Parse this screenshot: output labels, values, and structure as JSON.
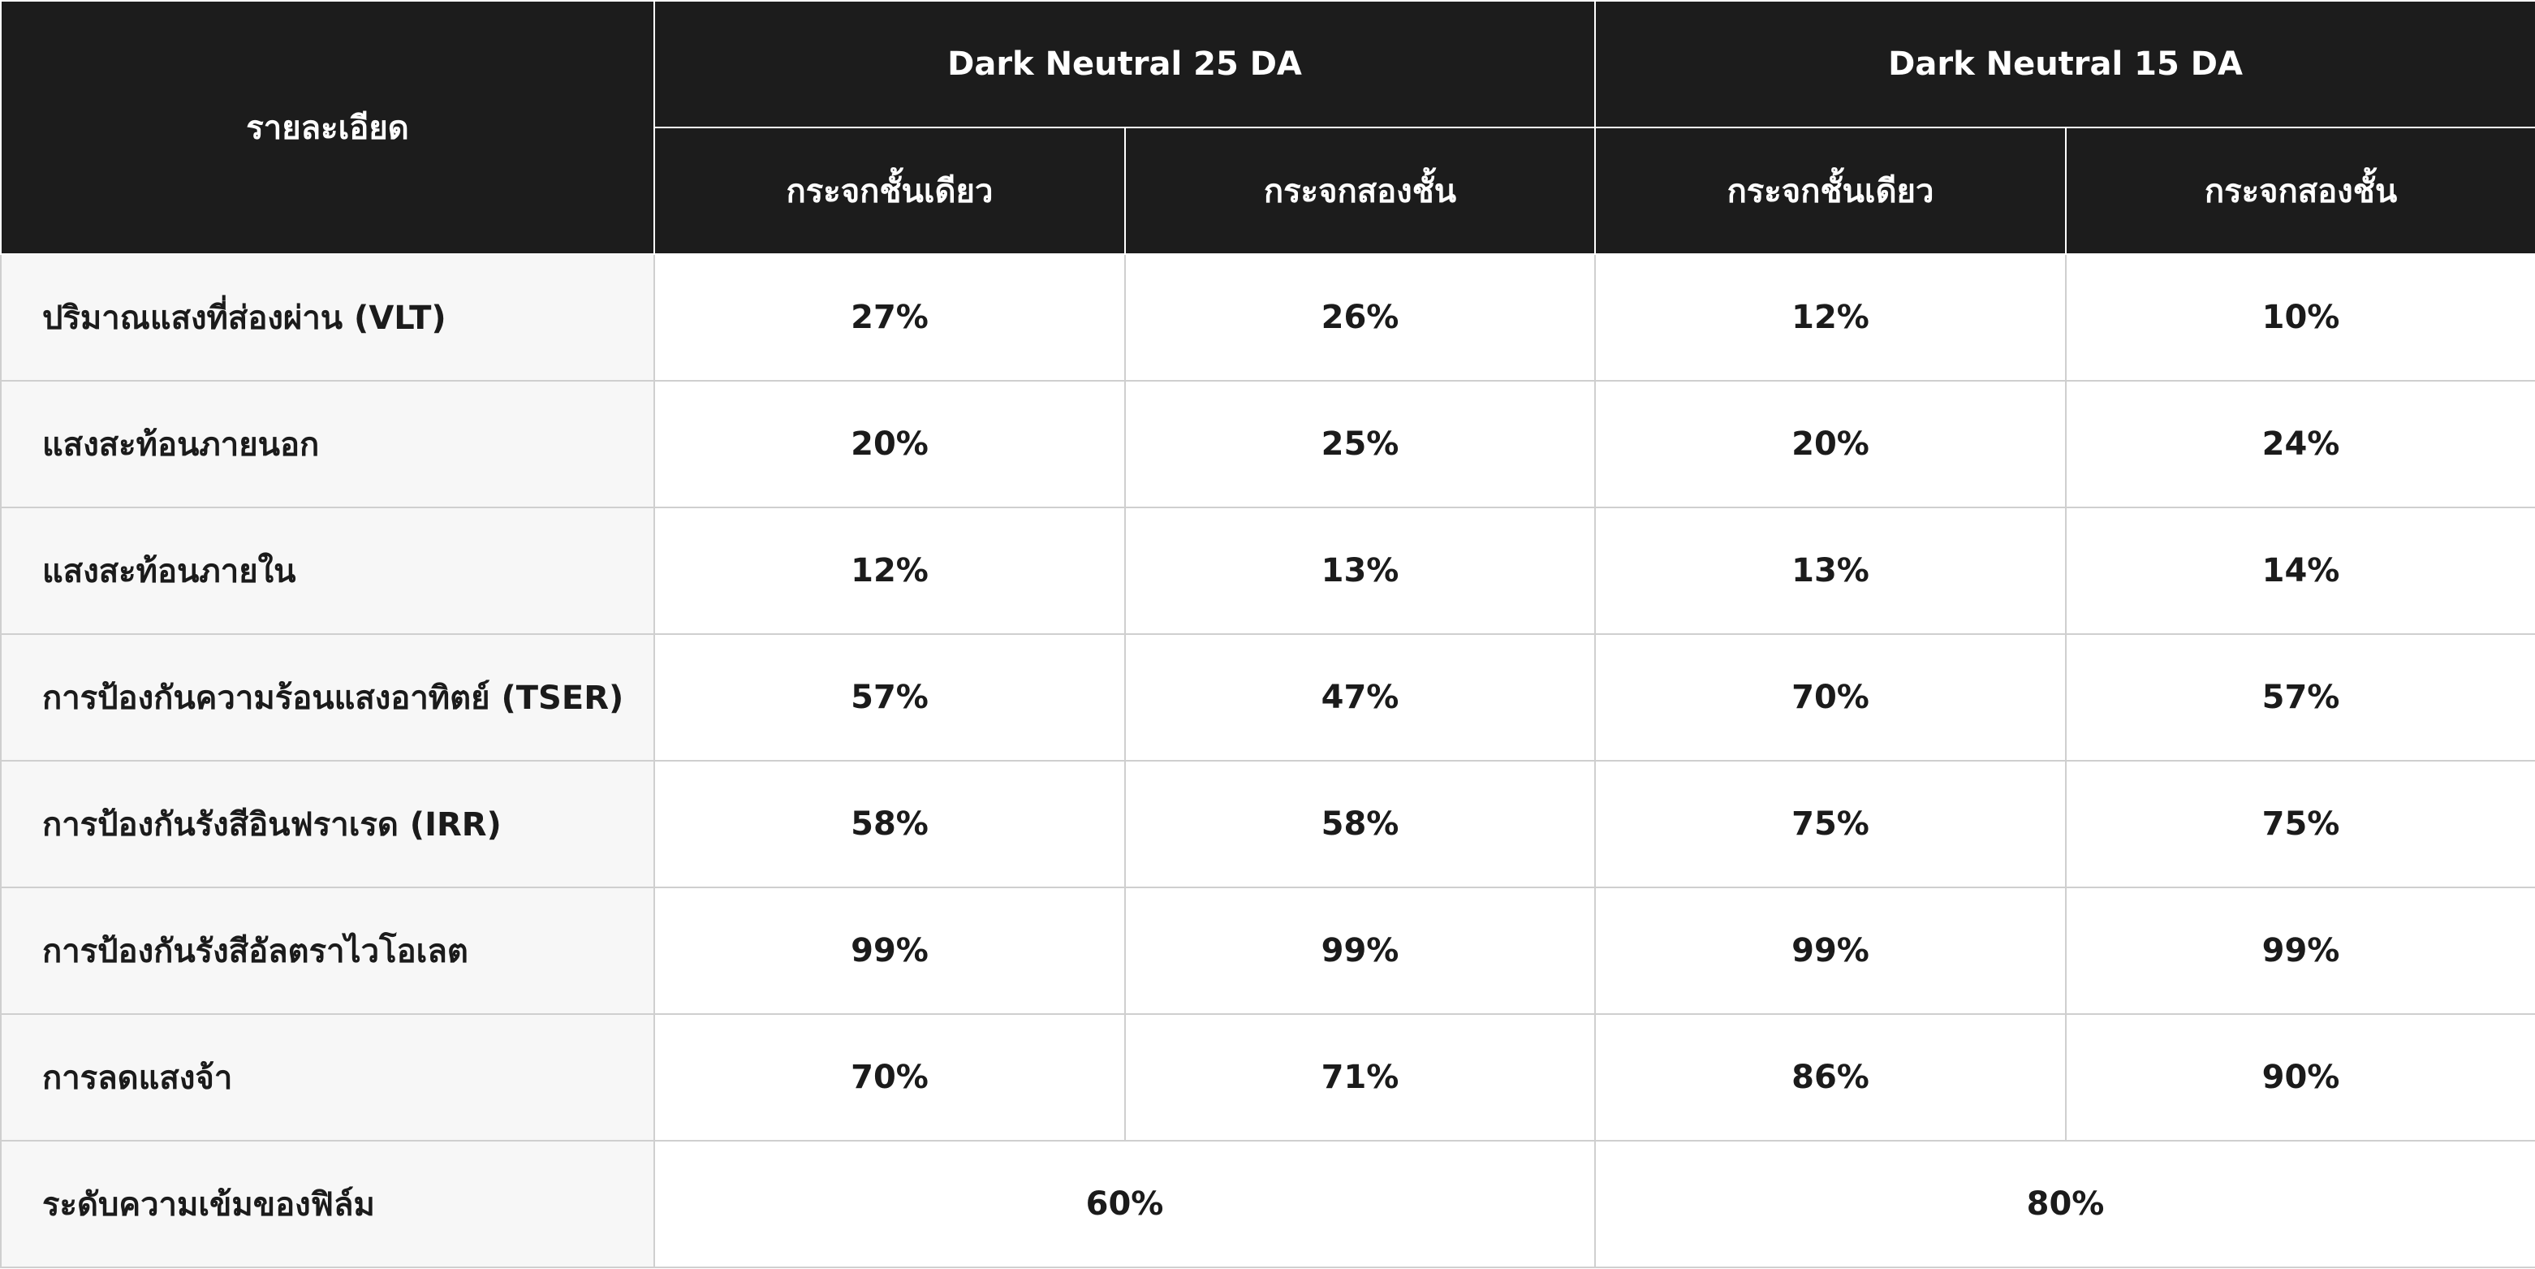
{
  "table": {
    "corner": "รายละเอียด",
    "groups": [
      "Dark Neutral 25 DA",
      "Dark Neutral 15 DA"
    ],
    "subheaders": [
      "กระจกชั้นเดียว",
      "กระจกสองชั้น",
      "กระจกชั้นเดียว",
      "กระจกสองชั้น"
    ],
    "rows": [
      {
        "label": "ปริมาณแสงที่ส่องผ่าน (VLT)",
        "values": [
          "27%",
          "26%",
          "12%",
          "10%"
        ]
      },
      {
        "label": "แสงสะท้อนภายนอก",
        "values": [
          "20%",
          "25%",
          "20%",
          "24%"
        ]
      },
      {
        "label": "แสงสะท้อนภายใน",
        "values": [
          "12%",
          "13%",
          "13%",
          "14%"
        ]
      },
      {
        "label": "การป้องกันความร้อนแสงอาทิตย์ (TSER)",
        "values": [
          "57%",
          "47%",
          "70%",
          "57%"
        ]
      },
      {
        "label": "การป้องกันรังสีอินฟราเรด (IRR)",
        "values": [
          "58%",
          "58%",
          "75%",
          "75%"
        ]
      },
      {
        "label": "การป้องกันรังสีอัลตราไวโอเลต",
        "values": [
          "99%",
          "99%",
          "99%",
          "99%"
        ]
      },
      {
        "label": "การลดแสงจ้า",
        "values": [
          "70%",
          "71%",
          "86%",
          "90%"
        ]
      }
    ],
    "footer": {
      "label": "ระดับความเข้มของฟิล์ม",
      "values": [
        "60%",
        "80%"
      ]
    }
  }
}
